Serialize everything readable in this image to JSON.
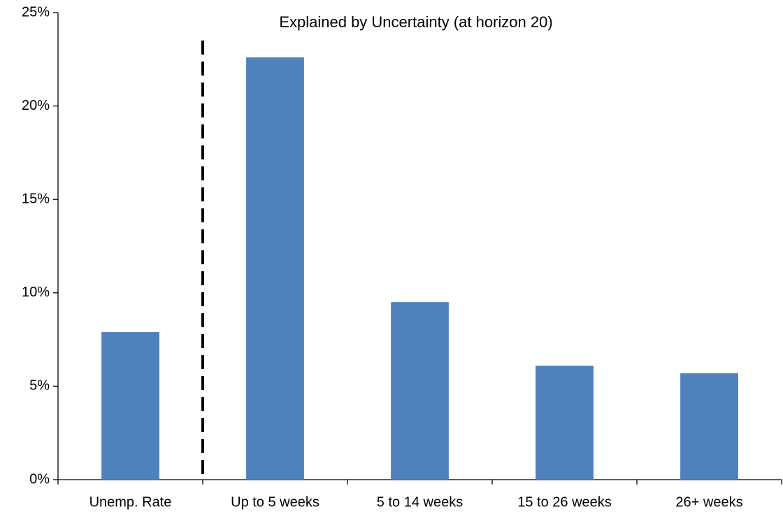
{
  "chart_data": {
    "type": "bar",
    "title": "Explained by Uncertainty (at horizon 20)",
    "categories": [
      "Unemp. Rate",
      "Up to 5 weeks",
      "5 to 14 weeks",
      "15 to 26 weeks",
      "26+ weeks"
    ],
    "values": [
      7.9,
      22.6,
      9.5,
      6.1,
      5.7
    ],
    "color": "#4f81bd",
    "ylim": [
      0,
      25
    ],
    "yticks": [
      {
        "value": 0,
        "label": "0%"
      },
      {
        "value": 5,
        "label": "5%"
      },
      {
        "value": 10,
        "label": "10%"
      },
      {
        "value": 15,
        "label": "15%"
      },
      {
        "value": 20,
        "label": "20%"
      },
      {
        "value": 25,
        "label": "25%"
      }
    ],
    "grid": false
  }
}
